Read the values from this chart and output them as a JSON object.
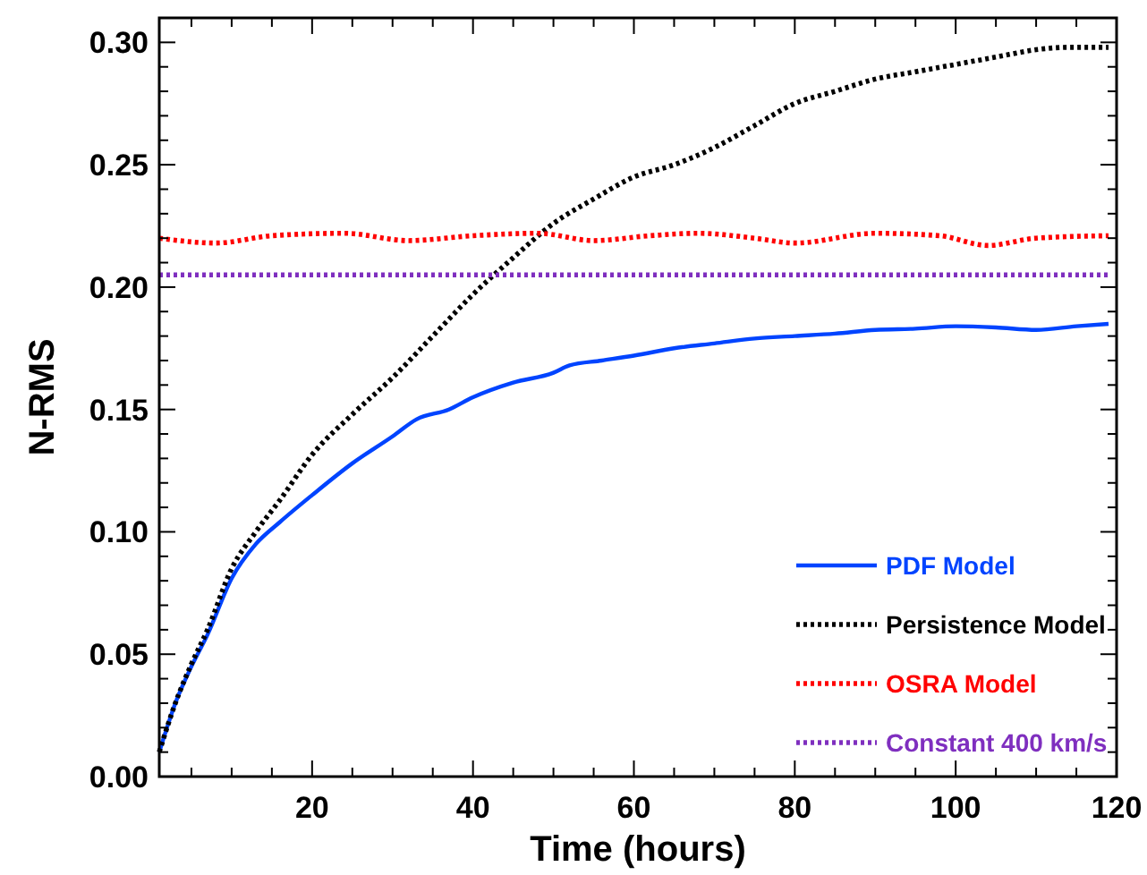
{
  "chart_data": {
    "type": "line",
    "xlabel": "Time (hours)",
    "ylabel": "N-RMS",
    "xlim": [
      1,
      120
    ],
    "ylim": [
      0,
      0.31
    ],
    "xticks": [
      {
        "value": 5,
        "label": null
      },
      {
        "value": 10,
        "label": null
      },
      {
        "value": 15,
        "label": null
      },
      20,
      {
        "value": 25,
        "label": null
      },
      {
        "value": 30,
        "label": null
      },
      {
        "value": 35,
        "label": null
      },
      40,
      {
        "value": 45,
        "label": null
      },
      {
        "value": 50,
        "label": null
      },
      {
        "value": 55,
        "label": null
      },
      60,
      {
        "value": 65,
        "label": null
      },
      {
        "value": 70,
        "label": null
      },
      {
        "value": 75,
        "label": null
      },
      80,
      {
        "value": 85,
        "label": null
      },
      {
        "value": 90,
        "label": null
      },
      {
        "value": 95,
        "label": null
      },
      100,
      {
        "value": 105,
        "label": null
      },
      {
        "value": 110,
        "label": null
      },
      {
        "value": 115,
        "label": null
      },
      120
    ],
    "yticks": [
      {
        "value": 0,
        "label": "0.00"
      },
      {
        "value": 0.01,
        "label": null
      },
      {
        "value": 0.02,
        "label": null
      },
      {
        "value": 0.03,
        "label": null
      },
      {
        "value": 0.04,
        "label": null
      },
      {
        "value": 0.05,
        "label": "0.05"
      },
      {
        "value": 0.06,
        "label": null
      },
      {
        "value": 0.07,
        "label": null
      },
      {
        "value": 0.08,
        "label": null
      },
      {
        "value": 0.09,
        "label": null
      },
      {
        "value": 0.1,
        "label": "0.10"
      },
      {
        "value": 0.11,
        "label": null
      },
      {
        "value": 0.12,
        "label": null
      },
      {
        "value": 0.13,
        "label": null
      },
      {
        "value": 0.14,
        "label": null
      },
      {
        "value": 0.15,
        "label": "0.15"
      },
      {
        "value": 0.16,
        "label": null
      },
      {
        "value": 0.17,
        "label": null
      },
      {
        "value": 0.18,
        "label": null
      },
      {
        "value": 0.19,
        "label": null
      },
      {
        "value": 0.2,
        "label": "0.20"
      },
      {
        "value": 0.21,
        "label": null
      },
      {
        "value": 0.22,
        "label": null
      },
      {
        "value": 0.23,
        "label": null
      },
      {
        "value": 0.24,
        "label": null
      },
      {
        "value": 0.25,
        "label": "0.25"
      },
      {
        "value": 0.26,
        "label": null
      },
      {
        "value": 0.27,
        "label": null
      },
      {
        "value": 0.28,
        "label": null
      },
      {
        "value": 0.29,
        "label": null
      },
      {
        "value": 0.3,
        "label": "0.30"
      }
    ],
    "grid": false,
    "legend": "bottom right",
    "marker": "none",
    "series": [
      {
        "name": "PDF Model",
        "color": "#0044ff",
        "line_style": "solid",
        "x": [
          1,
          3,
          5,
          7,
          10,
          13,
          16,
          20,
          25,
          30,
          33,
          37,
          40,
          45,
          50,
          52,
          56,
          60,
          65,
          70,
          75,
          80,
          85,
          90,
          95,
          100,
          105,
          110,
          115,
          119
        ],
        "values": [
          0.01,
          0.03,
          0.045,
          0.058,
          0.081,
          0.095,
          0.104,
          0.115,
          0.128,
          0.139,
          0.146,
          0.15,
          0.155,
          0.161,
          0.165,
          0.168,
          0.17,
          0.172,
          0.175,
          0.177,
          0.179,
          0.18,
          0.181,
          0.1825,
          0.183,
          0.184,
          0.1835,
          0.1825,
          0.184,
          0.185
        ]
      },
      {
        "name": "Persistence Model",
        "color": "#000000",
        "line_style": "dotted",
        "x": [
          1,
          3,
          5,
          7,
          10,
          13,
          16,
          20,
          25,
          30,
          35,
          40,
          45,
          50,
          55,
          60,
          65,
          70,
          75,
          80,
          85,
          90,
          95,
          100,
          105,
          110,
          114,
          119
        ],
        "values": [
          0.01,
          0.03,
          0.046,
          0.06,
          0.085,
          0.1,
          0.113,
          0.1315,
          0.148,
          0.163,
          0.18,
          0.197,
          0.212,
          0.226,
          0.236,
          0.245,
          0.25,
          0.257,
          0.266,
          0.275,
          0.28,
          0.285,
          0.288,
          0.291,
          0.294,
          0.297,
          0.298,
          0.298
        ]
      },
      {
        "name": "OSRA Model",
        "color": "#ff0000",
        "line_style": "dotted",
        "x": [
          1,
          8,
          15,
          24,
          32,
          40,
          48,
          55,
          62,
          68,
          75,
          80,
          90,
          98,
          104,
          110,
          119
        ],
        "values": [
          0.22,
          0.218,
          0.221,
          0.222,
          0.219,
          0.221,
          0.222,
          0.219,
          0.221,
          0.222,
          0.22,
          0.218,
          0.222,
          0.221,
          0.217,
          0.22,
          0.221
        ]
      },
      {
        "name": "Constant 400 km/s",
        "color": "#7f2fbf",
        "line_style": "dotted",
        "x": [
          1,
          119
        ],
        "values": [
          0.205,
          0.205
        ]
      }
    ]
  }
}
